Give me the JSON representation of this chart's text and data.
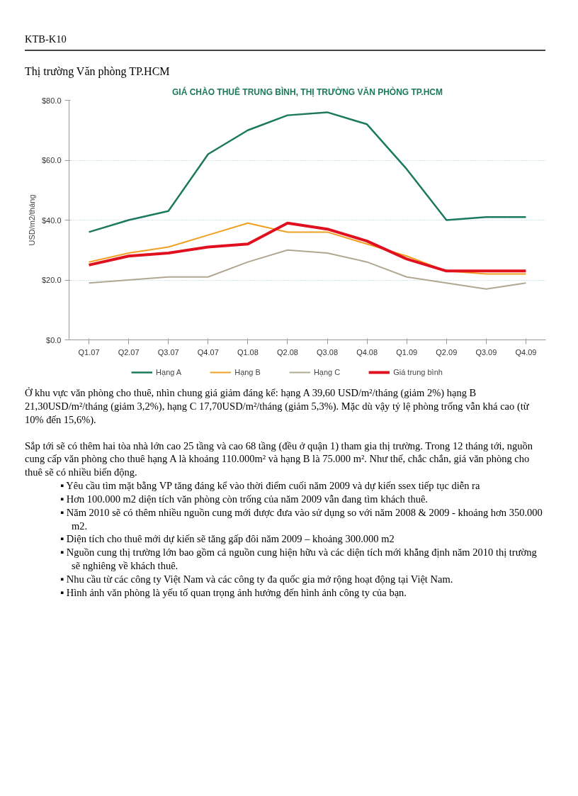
{
  "chart_data": {
    "type": "line",
    "title": "GIÁ CHÀO THUÊ TRUNG BÌNH, THỊ TRƯỜNG VĂN PHÒNG TP.HCM",
    "ylabel": "USD/m2/tháng",
    "categories": [
      "Q1.07",
      "Q2.07",
      "Q3.07",
      "Q4.07",
      "Q1.08",
      "Q2.08",
      "Q3.08",
      "Q4.08",
      "Q1.09",
      "Q2.09",
      "Q3.09",
      "Q4.09"
    ],
    "series": [
      {
        "name": "Hạng A",
        "color": "#1b7a5e",
        "values": [
          36,
          40,
          43,
          62,
          70,
          75,
          76,
          72,
          57,
          40,
          41,
          41
        ]
      },
      {
        "name": "Hạng B",
        "color": "#f0a020",
        "values": [
          26,
          29,
          31,
          35,
          39,
          36,
          36,
          32,
          28,
          23,
          22,
          22
        ]
      },
      {
        "name": "Hạng C",
        "color": "#b0a890",
        "values": [
          19,
          20,
          21,
          21,
          26,
          30,
          29,
          26,
          21,
          19,
          17,
          19
        ]
      },
      {
        "name": "Giá trung bình",
        "color": "#e0101e",
        "values": [
          25,
          28,
          29,
          31,
          32,
          39,
          37,
          33,
          27,
          23,
          23,
          23
        ]
      }
    ],
    "ylim": [
      0,
      80
    ],
    "yticks": [
      {
        "value": 0,
        "label": "$0.0"
      },
      {
        "value": 20,
        "label": "$20.0"
      },
      {
        "value": 40,
        "label": "$40.0"
      },
      {
        "value": 60,
        "label": "$60.0"
      },
      {
        "value": 80,
        "label": "$80.0"
      }
    ],
    "grid": "y",
    "legend": "bottom",
    "marker": "none",
    "line_style": "solid",
    "annotations": [
      "KTB-K10",
      "Thị trường Văn phòng TP.HCM",
      "Ở khu vực văn phòng cho thuê, nhìn chung giá giảm đáng kể: hạng A 39,60 USD/m²/tháng (giảm 2%) hạng B 21,30USD/m²/tháng (giảm 3,2%), hạng C 17,70USD/m²/tháng (giảm 5,3%). Mặc dù vậy tỷ lệ phòng trống vẫn khá cao (từ 10% đến 15,6%).",
      "Sắp tới sẽ có thêm hai tòa nhà lớn cao 25 tầng và cao 68 tầng (đều ở quận 1) tham gia thị trường. Trong 12 tháng tới, nguồn cung cấp văn phòng cho thuê hạng A là khoảng 110.000m² và hạng B là 75.000 m². Như thế, chắc chắn, giá văn phòng cho thuê sẽ có nhiều biến động.",
      "▪ Yêu cầu tìm mặt bằng VP tăng đáng kể vào thời điểm cuối năm 2009 và dự kiến ssex tiếp tục diễn ra",
      "▪ Hơn 100.000 m2 diện tích văn phòng còn trống của năm 2009 vẫn đang tìm khách thuê.",
      "▪ Năm 2010 sẽ có thêm nhiều nguồn cung mới được đưa vào sử dụng so với năm 2008 & 2009 - khoảng hơn 350.000 m2.",
      "▪ Diện tích cho thuê mới dự kiến sẽ tăng gấp đôi năm 2009 – khoảng 300.000 m2",
      "▪ Nguồn cung thị trường lớn bao gồm cả nguồn cung hiện hữu và các diện tích mới khẳng định năm 2010 thị trường sẽ nghiêng về khách thuê.",
      "▪ Nhu cầu từ các công ty Việt Nam và các công ty đa quốc gia mở rộng hoạt động tại Việt Nam.",
      "▪ Hình ảnh văn phòng là yếu tố quan trọng ảnh hưởng đến hình ảnh công ty của bạn."
    ]
  }
}
